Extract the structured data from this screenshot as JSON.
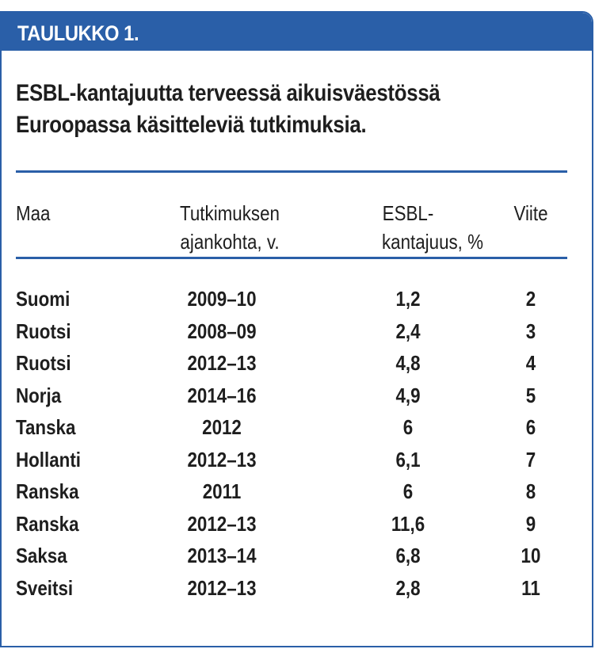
{
  "table_label": "TAULUKKO 1.",
  "caption": {
    "line1": "ESBL-kantajuutta terveessä aikuisväestössä",
    "line2": "Euroopassa käsitteleviä tutkimuksia."
  },
  "columns": {
    "maa": "Maa",
    "aika_line1": "Tutkimuksen",
    "aika_line2": "ajankohta, v.",
    "esbl_line1": "ESBL-",
    "esbl_line2": "kantajuus, %",
    "viite": "Viite"
  },
  "rows": [
    {
      "maa": "Suomi",
      "aika": "2009–10",
      "esbl": "1,2",
      "viite": "2"
    },
    {
      "maa": "Ruotsi",
      "aika": "2008–09",
      "esbl": "2,4",
      "viite": "3"
    },
    {
      "maa": "Ruotsi",
      "aika": "2012–13",
      "esbl": "4,8",
      "viite": "4"
    },
    {
      "maa": "Norja",
      "aika": "2014–16",
      "esbl": "4,9",
      "viite": "5"
    },
    {
      "maa": "Tanska",
      "aika": "2012",
      "esbl": "6",
      "viite": "6"
    },
    {
      "maa": "Hollanti",
      "aika": "2012–13",
      "esbl": "6,1",
      "viite": "7"
    },
    {
      "maa": "Ranska",
      "aika": "2011",
      "esbl": "6",
      "viite": "8"
    },
    {
      "maa": "Ranska",
      "aika": "2012–13",
      "esbl": "11,6",
      "viite": "9"
    },
    {
      "maa": "Saksa",
      "aika": "2013–14",
      "esbl": "6,8",
      "viite": "10"
    },
    {
      "maa": "Sveitsi",
      "aika": "2012–13",
      "esbl": "2,8",
      "viite": "11"
    }
  ]
}
